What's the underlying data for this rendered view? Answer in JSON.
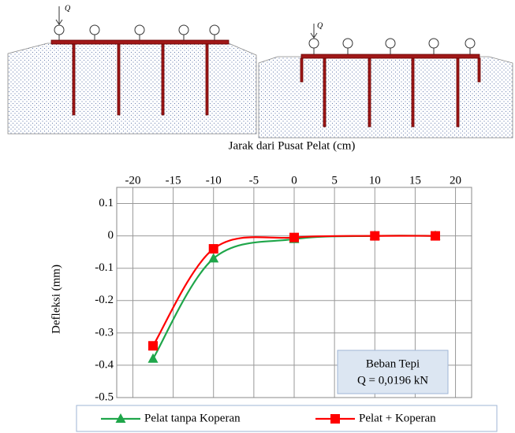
{
  "diagram": {
    "panels": [
      {
        "load_label": "Q"
      },
      {
        "load_label": "Q"
      }
    ]
  },
  "chart_data": {
    "type": "line",
    "xlabel": "Jarak dari Pusat Pelat (cm)",
    "ylabel": "Defleksi (mm)",
    "annotation": [
      "Beban Tepi",
      "Q = 0,0196 kN"
    ],
    "x": [
      -17.5,
      -10,
      0,
      10,
      17.5
    ],
    "series": [
      {
        "name": "Pelat tanpa Koperan",
        "color": "#1fa64a",
        "marker": "triangle",
        "values": [
          -0.38,
          -0.07,
          -0.01,
          0,
          0
        ]
      },
      {
        "name": "Pelat + Koperan",
        "color": "#ff0000",
        "marker": "square",
        "values": [
          -0.34,
          -0.04,
          -0.005,
          0,
          0
        ]
      }
    ],
    "xlim": [
      -22,
      22
    ],
    "xticks": [
      -20,
      -15,
      -10,
      -5,
      0,
      5,
      10,
      15,
      20
    ],
    "ylim": [
      -0.5,
      0.15
    ],
    "yticks": [
      0.1,
      0,
      -0.1,
      -0.2,
      -0.3,
      -0.4,
      -0.5
    ],
    "grid": true,
    "legend": "bottom"
  }
}
